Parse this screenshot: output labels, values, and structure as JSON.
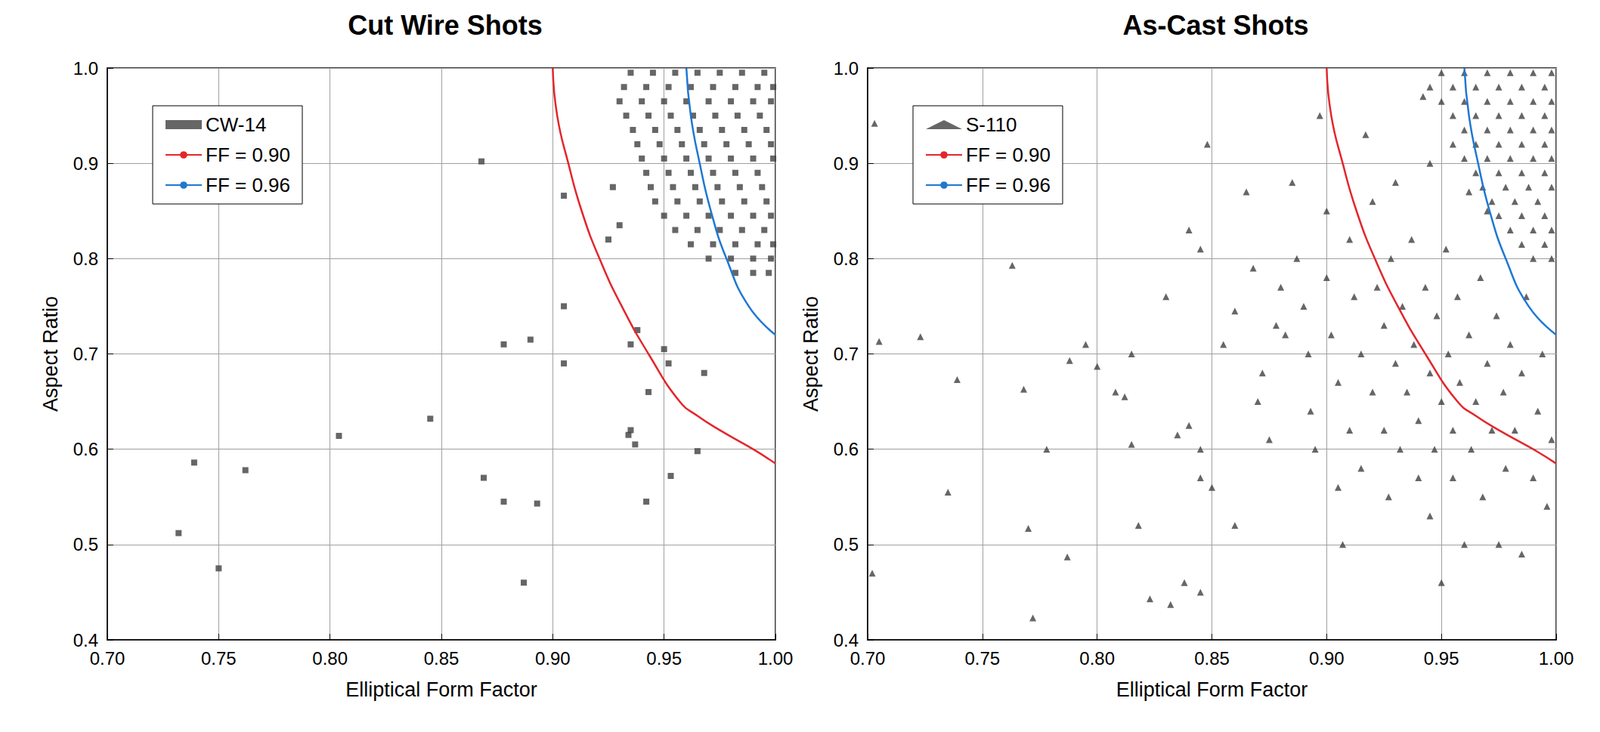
{
  "chart_data": [
    {
      "type": "scatter",
      "title": "Cut Wire Shots",
      "x_label": "Elliptical Form Factor",
      "y_label": "Aspect Ratio",
      "xlim": [
        0.7,
        1.0
      ],
      "xticks": [
        {
          "value": 0.7,
          "label": "0.70"
        },
        {
          "value": 0.75,
          "label": "0.75"
        },
        {
          "value": 0.8,
          "label": "0.80"
        },
        {
          "value": 0.85,
          "label": "0.85"
        },
        {
          "value": 0.9,
          "label": "0.90"
        },
        {
          "value": 0.95,
          "label": "0.95"
        },
        {
          "value": 1.0,
          "label": "1.00"
        }
      ],
      "ylim": [
        0.4,
        1.0
      ],
      "yticks": [
        0.4,
        0.5,
        0.6,
        0.7,
        0.8,
        0.9,
        {
          "value": 1.0,
          "label": "1.0"
        }
      ],
      "grid": true,
      "legend": "upper left",
      "series": [
        {
          "name": "CW-14",
          "type": "scatter",
          "marker": "square",
          "color": "#404040",
          "x": [
            0.868,
            0.905,
            0.905,
            0.905,
            0.89,
            0.878,
            0.804,
            0.845,
            0.739,
            0.762,
            0.732,
            0.75,
            0.869,
            0.878,
            0.893,
            0.887,
            0.938,
            0.935,
            0.943,
            0.935,
            0.937,
            0.934,
            0.942,
            0.953,
            0.965,
            0.95,
            0.952,
            0.968,
            0.927,
            0.93,
            0.925,
            0.935,
            0.945,
            0.955,
            0.965,
            0.975,
            0.985,
            0.995,
            0.932,
            0.942,
            0.952,
            0.962,
            0.972,
            0.982,
            0.992,
            0.999,
            0.93,
            0.94,
            0.95,
            0.96,
            0.97,
            0.98,
            0.99,
            0.998,
            0.933,
            0.943,
            0.953,
            0.963,
            0.973,
            0.983,
            0.993,
            0.936,
            0.946,
            0.956,
            0.966,
            0.976,
            0.986,
            0.996,
            0.938,
            0.948,
            0.958,
            0.968,
            0.978,
            0.988,
            0.998,
            0.94,
            0.95,
            0.96,
            0.97,
            0.98,
            0.99,
            0.999,
            0.942,
            0.952,
            0.962,
            0.972,
            0.982,
            0.992,
            0.944,
            0.954,
            0.964,
            0.974,
            0.984,
            0.994,
            0.946,
            0.956,
            0.966,
            0.976,
            0.986,
            0.996,
            0.95,
            0.96,
            0.97,
            0.98,
            0.99,
            0.998,
            0.955,
            0.965,
            0.975,
            0.985,
            0.995,
            0.962,
            0.972,
            0.982,
            0.992,
            0.999,
            0.97,
            0.98,
            0.99,
            0.998,
            0.982,
            0.99,
            0.997
          ],
          "values": [
            0.902,
            0.866,
            0.75,
            0.69,
            0.715,
            0.71,
            0.614,
            0.632,
            0.586,
            0.578,
            0.512,
            0.475,
            0.57,
            0.545,
            0.543,
            0.46,
            0.725,
            0.71,
            0.66,
            0.62,
            0.605,
            0.615,
            0.545,
            0.572,
            0.598,
            0.705,
            0.69,
            0.68,
            0.875,
            0.835,
            0.82,
            0.995,
            0.995,
            0.995,
            0.995,
            0.995,
            0.995,
            0.995,
            0.98,
            0.98,
            0.98,
            0.98,
            0.98,
            0.98,
            0.98,
            0.98,
            0.965,
            0.965,
            0.965,
            0.965,
            0.965,
            0.965,
            0.965,
            0.965,
            0.95,
            0.95,
            0.95,
            0.95,
            0.95,
            0.95,
            0.95,
            0.935,
            0.935,
            0.935,
            0.935,
            0.935,
            0.935,
            0.935,
            0.92,
            0.92,
            0.92,
            0.92,
            0.92,
            0.92,
            0.92,
            0.905,
            0.905,
            0.905,
            0.905,
            0.905,
            0.905,
            0.905,
            0.89,
            0.89,
            0.89,
            0.89,
            0.89,
            0.89,
            0.875,
            0.875,
            0.875,
            0.875,
            0.875,
            0.875,
            0.86,
            0.86,
            0.86,
            0.86,
            0.86,
            0.86,
            0.845,
            0.845,
            0.845,
            0.845,
            0.845,
            0.845,
            0.83,
            0.83,
            0.83,
            0.83,
            0.83,
            0.815,
            0.815,
            0.815,
            0.815,
            0.815,
            0.8,
            0.8,
            0.8,
            0.8,
            0.785,
            0.785,
            0.785
          ]
        },
        {
          "name": "FF = 0.90",
          "type": "line",
          "line_style": "solid",
          "color": "#e3262b",
          "x": [
            0.9,
            0.902,
            0.907,
            0.913,
            0.921,
            0.931,
            0.943,
            0.957,
            0.965,
            0.975,
            0.99,
            1.0
          ],
          "values": [
            1.0,
            0.95,
            0.9,
            0.85,
            0.8,
            0.75,
            0.7,
            0.65,
            0.635,
            0.62,
            0.6,
            0.585
          ]
        },
        {
          "name": "FF = 0.96",
          "type": "line",
          "line_style": "solid",
          "color": "#1f78d1",
          "x": [
            0.96,
            0.962,
            0.966,
            0.971,
            0.978,
            0.988,
            1.0
          ],
          "values": [
            1.0,
            0.95,
            0.9,
            0.85,
            0.8,
            0.75,
            0.72
          ]
        }
      ]
    },
    {
      "type": "scatter",
      "title": "As-Cast Shots",
      "x_label": "Elliptical Form Factor",
      "y_label": "Aspect Ratio",
      "xlim": [
        0.7,
        1.0
      ],
      "xticks": [
        {
          "value": 0.7,
          "label": "0.70"
        },
        {
          "value": 0.75,
          "label": "0.75"
        },
        {
          "value": 0.8,
          "label": "0.80"
        },
        {
          "value": 0.85,
          "label": "0.85"
        },
        {
          "value": 0.9,
          "label": "0.90"
        },
        {
          "value": 0.95,
          "label": "0.95"
        },
        {
          "value": 1.0,
          "label": "1.00"
        }
      ],
      "ylim": [
        0.4,
        1.0
      ],
      "yticks": [
        0.4,
        0.5,
        0.6,
        0.7,
        0.8,
        0.9,
        {
          "value": 1.0,
          "label": "1.0"
        }
      ],
      "grid": true,
      "legend": "upper left",
      "series": [
        {
          "name": "S-110",
          "type": "scatter",
          "marker": "triangle",
          "color": "#404040",
          "x": [
            0.703,
            0.705,
            0.723,
            0.702,
            0.739,
            0.735,
            0.763,
            0.768,
            0.778,
            0.77,
            0.772,
            0.787,
            0.788,
            0.795,
            0.8,
            0.808,
            0.812,
            0.815,
            0.815,
            0.818,
            0.823,
            0.832,
            0.835,
            0.84,
            0.845,
            0.845,
            0.85,
            0.86,
            0.845,
            0.838,
            0.83,
            0.84,
            0.845,
            0.848,
            0.855,
            0.86,
            0.865,
            0.868,
            0.87,
            0.872,
            0.875,
            0.878,
            0.88,
            0.882,
            0.885,
            0.887,
            0.89,
            0.892,
            0.893,
            0.895,
            0.897,
            0.9,
            0.9,
            0.902,
            0.905,
            0.905,
            0.907,
            0.91,
            0.91,
            0.912,
            0.915,
            0.915,
            0.917,
            0.92,
            0.92,
            0.922,
            0.925,
            0.925,
            0.927,
            0.928,
            0.93,
            0.93,
            0.932,
            0.933,
            0.935,
            0.937,
            0.938,
            0.94,
            0.94,
            0.942,
            0.943,
            0.945,
            0.945,
            0.947,
            0.948,
            0.95,
            0.95,
            0.952,
            0.953,
            0.955,
            0.955,
            0.957,
            0.958,
            0.96,
            0.962,
            0.963,
            0.965,
            0.967,
            0.968,
            0.97,
            0.972,
            0.974,
            0.975,
            0.977,
            0.978,
            0.98,
            0.982,
            0.985,
            0.985,
            0.987,
            0.99,
            0.992,
            0.994,
            0.996,
            0.998,
            0.962,
            0.945,
            0.97,
            0.95,
            0.96,
            0.97,
            0.98,
            0.99,
            0.998,
            0.945,
            0.955,
            0.965,
            0.975,
            0.985,
            0.995,
            0.95,
            0.96,
            0.97,
            0.98,
            0.99,
            0.998,
            0.955,
            0.965,
            0.975,
            0.985,
            0.995,
            0.96,
            0.97,
            0.98,
            0.99,
            0.998,
            0.955,
            0.965,
            0.975,
            0.985,
            0.995,
            0.96,
            0.97,
            0.98,
            0.99,
            0.998,
            0.965,
            0.975,
            0.985,
            0.995,
            0.968,
            0.978,
            0.988,
            0.998,
            0.972,
            0.982,
            0.992,
            0.975,
            0.985,
            0.995,
            0.98,
            0.99,
            0.998,
            0.985,
            0.995,
            0.99,
            0.998
          ],
          "values": [
            0.942,
            0.713,
            0.718,
            0.47,
            0.673,
            0.555,
            0.793,
            0.663,
            0.6,
            0.517,
            0.423,
            0.487,
            0.693,
            0.71,
            0.687,
            0.66,
            0.655,
            0.7,
            0.605,
            0.52,
            0.443,
            0.437,
            0.615,
            0.625,
            0.6,
            0.57,
            0.56,
            0.52,
            0.45,
            0.46,
            0.76,
            0.83,
            0.81,
            0.92,
            0.71,
            0.745,
            0.87,
            0.79,
            0.65,
            0.68,
            0.61,
            0.73,
            0.77,
            0.72,
            0.88,
            0.8,
            0.75,
            0.7,
            0.64,
            0.6,
            0.95,
            0.85,
            0.78,
            0.72,
            0.67,
            0.56,
            0.5,
            0.82,
            0.62,
            0.76,
            0.7,
            0.58,
            0.93,
            0.86,
            0.66,
            0.77,
            0.73,
            0.62,
            0.55,
            0.8,
            0.69,
            0.88,
            0.6,
            0.75,
            0.66,
            0.82,
            0.71,
            0.63,
            0.57,
            0.97,
            0.77,
            0.68,
            0.53,
            0.6,
            0.74,
            0.46,
            0.65,
            0.81,
            0.7,
            0.57,
            0.62,
            0.76,
            0.67,
            0.5,
            0.72,
            0.6,
            0.65,
            0.78,
            0.55,
            0.69,
            0.62,
            0.74,
            0.5,
            0.66,
            0.58,
            0.71,
            0.62,
            0.49,
            0.68,
            0.76,
            0.57,
            0.64,
            0.7,
            0.54,
            0.61,
            0.87,
            0.9,
            0.85,
            0.995,
            0.995,
            0.995,
            0.995,
            0.995,
            0.995,
            0.98,
            0.98,
            0.98,
            0.98,
            0.98,
            0.98,
            0.965,
            0.965,
            0.965,
            0.965,
            0.965,
            0.965,
            0.95,
            0.95,
            0.95,
            0.95,
            0.95,
            0.935,
            0.935,
            0.935,
            0.935,
            0.935,
            0.92,
            0.92,
            0.92,
            0.92,
            0.92,
            0.905,
            0.905,
            0.905,
            0.905,
            0.905,
            0.89,
            0.89,
            0.89,
            0.89,
            0.875,
            0.875,
            0.875,
            0.875,
            0.86,
            0.86,
            0.86,
            0.845,
            0.845,
            0.845,
            0.83,
            0.83,
            0.83,
            0.815,
            0.815,
            0.8,
            0.8
          ]
        },
        {
          "name": "FF = 0.90",
          "type": "line",
          "line_style": "solid",
          "color": "#e3262b",
          "x": [
            0.9,
            0.902,
            0.907,
            0.913,
            0.921,
            0.931,
            0.943,
            0.957,
            0.965,
            0.975,
            0.99,
            1.0
          ],
          "values": [
            1.0,
            0.95,
            0.9,
            0.85,
            0.8,
            0.75,
            0.7,
            0.65,
            0.635,
            0.62,
            0.6,
            0.585
          ]
        },
        {
          "name": "FF = 0.96",
          "type": "line",
          "line_style": "solid",
          "color": "#1f78d1",
          "x": [
            0.96,
            0.962,
            0.966,
            0.971,
            0.978,
            0.988,
            1.0
          ],
          "values": [
            1.0,
            0.95,
            0.9,
            0.85,
            0.8,
            0.75,
            0.72
          ]
        }
      ]
    }
  ]
}
